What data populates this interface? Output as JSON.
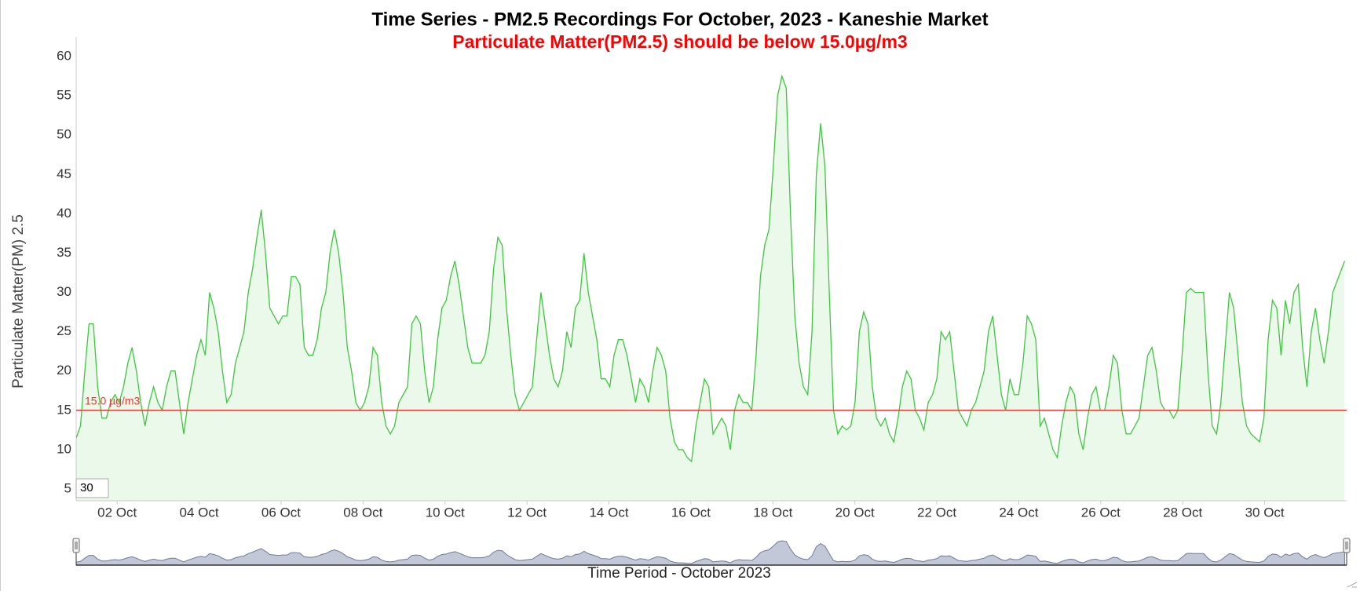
{
  "chart_data": {
    "type": "line",
    "title": "Time Series - PM2.5 Recordings For October, 2023 - Kaneshie Market",
    "subtitle": "Particulate Matter(PM2.5) should be below 15.0µg/m3",
    "y_label": "Particulate Matter(PM) 2.5",
    "x_label": "Time Period - October 2023",
    "range_input": "30",
    "threshold": 15,
    "threshold_label": "15.0 µg/m3",
    "threshold_color": "#e53935",
    "grid": false,
    "xlim": [
      1,
      32
    ],
    "ylim": [
      3.5,
      62.5
    ],
    "yticks": [
      5,
      10,
      15,
      20,
      25,
      30,
      35,
      40,
      45,
      50,
      55,
      60
    ],
    "xticks": [
      {
        "value": 2,
        "label": "02 Oct"
      },
      {
        "value": 4,
        "label": "04 Oct"
      },
      {
        "value": 6,
        "label": "06 Oct"
      },
      {
        "value": 8,
        "label": "08 Oct"
      },
      {
        "value": 10,
        "label": "10 Oct"
      },
      {
        "value": 12,
        "label": "12 Oct"
      },
      {
        "value": 14,
        "label": "14 Oct"
      },
      {
        "value": 16,
        "label": "16 Oct"
      },
      {
        "value": 18,
        "label": "18 Oct"
      },
      {
        "value": 20,
        "label": "20 Oct"
      },
      {
        "value": 22,
        "label": "22 Oct"
      },
      {
        "value": 24,
        "label": "24 Oct"
      },
      {
        "value": 26,
        "label": "26 Oct"
      },
      {
        "value": 28,
        "label": "28 Oct"
      },
      {
        "value": 30,
        "label": "30 Oct"
      }
    ],
    "x": [
      1,
      1.105,
      1.21,
      1.315,
      1.42,
      1.525,
      1.63,
      1.735,
      1.84,
      1.945,
      2.05,
      2.155,
      2.26,
      2.365,
      2.47,
      2.575,
      2.68,
      2.785,
      2.89,
      2.995,
      3.1,
      3.205,
      3.31,
      3.415,
      3.52,
      3.625,
      3.73,
      3.835,
      3.94,
      4.045,
      4.15,
      4.255,
      4.36,
      4.465,
      4.57,
      4.675,
      4.78,
      4.885,
      4.99,
      5.095,
      5.2,
      5.305,
      5.41,
      5.515,
      5.62,
      5.725,
      5.83,
      5.935,
      6.04,
      6.145,
      6.25,
      6.355,
      6.46,
      6.565,
      6.67,
      6.775,
      6.88,
      6.985,
      7.09,
      7.195,
      7.3,
      7.405,
      7.51,
      7.615,
      7.72,
      7.825,
      7.93,
      8.035,
      8.14,
      8.245,
      8.35,
      8.455,
      8.56,
      8.665,
      8.77,
      8.875,
      8.98,
      9.085,
      9.19,
      9.295,
      9.4,
      9.505,
      9.61,
      9.715,
      9.82,
      9.925,
      10.03,
      10.135,
      10.24,
      10.345,
      10.45,
      10.555,
      10.66,
      10.765,
      10.87,
      10.975,
      11.08,
      11.185,
      11.29,
      11.395,
      11.5,
      11.605,
      11.71,
      11.815,
      11.92,
      12.025,
      12.13,
      12.235,
      12.34,
      12.445,
      12.55,
      12.655,
      12.76,
      12.865,
      12.97,
      13.075,
      13.18,
      13.285,
      13.39,
      13.495,
      13.6,
      13.705,
      13.81,
      13.915,
      14.02,
      14.125,
      14.23,
      14.335,
      14.44,
      14.545,
      14.65,
      14.755,
      14.86,
      14.965,
      15.07,
      15.175,
      15.28,
      15.385,
      15.49,
      15.595,
      15.7,
      15.805,
      15.91,
      16.015,
      16.12,
      16.225,
      16.33,
      16.435,
      16.54,
      16.645,
      16.75,
      16.855,
      16.96,
      17.065,
      17.17,
      17.275,
      17.38,
      17.485,
      17.59,
      17.695,
      17.8,
      17.905,
      18.01,
      18.115,
      18.22,
      18.325,
      18.43,
      18.535,
      18.64,
      18.745,
      18.85,
      18.955,
      19.06,
      19.165,
      19.27,
      19.375,
      19.48,
      19.585,
      19.69,
      19.795,
      19.9,
      20.005,
      20.11,
      20.215,
      20.32,
      20.425,
      20.53,
      20.635,
      20.74,
      20.845,
      20.95,
      21.055,
      21.16,
      21.265,
      21.37,
      21.475,
      21.58,
      21.685,
      21.79,
      21.895,
      22,
      22.105,
      22.21,
      22.315,
      22.42,
      22.525,
      22.63,
      22.735,
      22.84,
      22.945,
      23.05,
      23.155,
      23.26,
      23.365,
      23.47,
      23.575,
      23.68,
      23.785,
      23.89,
      23.995,
      24.1,
      24.205,
      24.31,
      24.415,
      24.52,
      24.625,
      24.73,
      24.835,
      24.94,
      25.045,
      25.15,
      25.255,
      25.36,
      25.465,
      25.57,
      25.675,
      25.78,
      25.885,
      25.99,
      26.095,
      26.2,
      26.305,
      26.41,
      26.515,
      26.62,
      26.725,
      26.83,
      26.935,
      27.04,
      27.145,
      27.25,
      27.355,
      27.46,
      27.565,
      27.67,
      27.775,
      27.88,
      27.985,
      28.09,
      28.195,
      28.3,
      28.405,
      28.51,
      28.615,
      28.72,
      28.825,
      28.93,
      29.035,
      29.14,
      29.245,
      29.35,
      29.455,
      29.56,
      29.665,
      29.77,
      29.875,
      29.98,
      30.085,
      30.19,
      30.295,
      30.4,
      30.505,
      30.61,
      30.715,
      30.82,
      30.925,
      31.03,
      31.135,
      31.24,
      31.345,
      31.45,
      31.555,
      31.66,
      31.95
    ],
    "series": [
      {
        "name": "PM2.5",
        "color": "#3cc83c",
        "values": [
          11.5,
          13,
          20,
          26,
          26,
          18,
          14,
          14,
          16,
          17,
          16,
          18,
          21,
          23,
          20,
          16,
          13,
          16,
          18,
          16,
          15,
          18,
          20,
          20,
          16,
          12,
          16,
          19,
          22,
          24,
          22,
          30,
          28,
          25,
          20,
          16,
          17,
          21,
          23,
          25,
          30,
          33,
          37,
          40.5,
          35,
          28,
          27,
          26,
          27,
          27,
          32,
          32,
          31,
          23,
          22,
          22,
          24,
          28,
          30,
          35,
          38,
          35,
          30,
          23,
          20,
          16,
          15,
          16,
          18,
          23,
          22,
          16,
          13,
          12,
          13,
          16,
          17,
          18,
          26,
          27,
          26,
          20,
          16,
          18,
          24,
          28,
          29,
          32,
          34,
          31,
          27,
          23,
          21,
          21,
          21,
          22,
          25,
          33,
          37,
          36,
          28,
          22,
          17,
          15,
          16,
          17,
          18,
          24,
          30,
          26,
          22,
          19,
          18,
          20,
          25,
          23,
          28,
          29,
          35,
          30,
          27,
          24,
          19,
          19,
          18,
          22,
          24,
          24,
          22,
          19,
          16,
          19,
          18,
          16,
          20,
          23,
          22,
          20,
          14,
          11,
          10,
          10,
          9,
          8.5,
          13,
          16,
          19,
          18,
          12,
          13,
          14,
          13,
          10,
          15,
          17,
          16,
          16,
          15,
          22,
          32,
          36,
          38,
          46,
          55,
          57.5,
          56,
          40,
          27,
          21,
          18,
          17,
          25,
          45,
          51.5,
          46,
          30,
          15,
          12,
          13,
          12.5,
          13,
          16,
          25,
          27.5,
          26,
          18,
          14,
          13,
          14,
          12,
          11,
          14,
          18,
          20,
          19,
          15,
          14,
          12.5,
          16,
          17,
          19,
          25,
          24,
          25,
          20,
          15,
          14,
          13,
          15,
          16,
          18,
          20,
          25,
          27,
          22,
          17,
          15,
          19,
          17,
          17,
          21,
          27,
          26,
          24,
          13,
          14,
          12,
          10,
          9,
          13,
          16,
          18,
          17,
          12,
          10,
          14,
          17,
          18,
          15,
          15,
          18,
          22,
          21,
          15,
          12,
          12,
          13,
          14,
          18,
          22,
          23,
          20,
          16,
          15,
          15,
          14,
          15,
          22,
          30,
          30.5,
          30,
          30,
          30,
          20,
          13,
          12,
          16,
          23,
          30,
          28,
          22,
          16,
          13,
          12,
          11.5,
          11,
          14,
          24,
          29,
          28,
          22,
          29,
          26,
          30,
          31,
          23,
          18,
          25,
          28,
          24,
          21,
          25,
          30,
          34
        ]
      }
    ]
  }
}
